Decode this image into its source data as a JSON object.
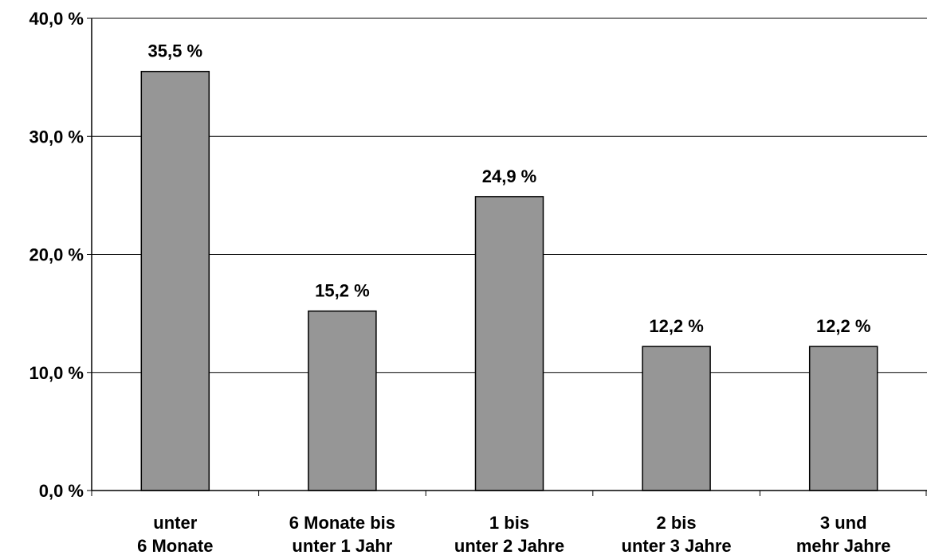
{
  "chart_data": {
    "type": "bar",
    "title": "",
    "xlabel": "",
    "ylabel": "",
    "categories": [
      [
        "unter",
        "6 Monate"
      ],
      [
        "6 Monate bis",
        "unter 1 Jahr"
      ],
      [
        "1 bis",
        "unter 2 Jahre"
      ],
      [
        "2 bis",
        "unter 3 Jahre"
      ],
      [
        "3 und",
        "mehr Jahre"
      ]
    ],
    "values": [
      35.5,
      15.2,
      24.9,
      12.2,
      12.2
    ],
    "value_labels": [
      "35,5 %",
      "15,2 %",
      "24,9 %",
      "12,2 %",
      "12,2 %"
    ],
    "ylim": [
      0,
      40
    ],
    "yticks": [
      0,
      10,
      20,
      30,
      40
    ],
    "ytick_labels": [
      "0,0 %",
      "10,0 %",
      "20,0 %",
      "30,0 %",
      "40,0 %"
    ],
    "grid": true,
    "legend": "none",
    "colors": {
      "bar_fill": "#969696",
      "bar_stroke": "#000000",
      "gridline": "#000000",
      "axis": "#000000"
    }
  }
}
